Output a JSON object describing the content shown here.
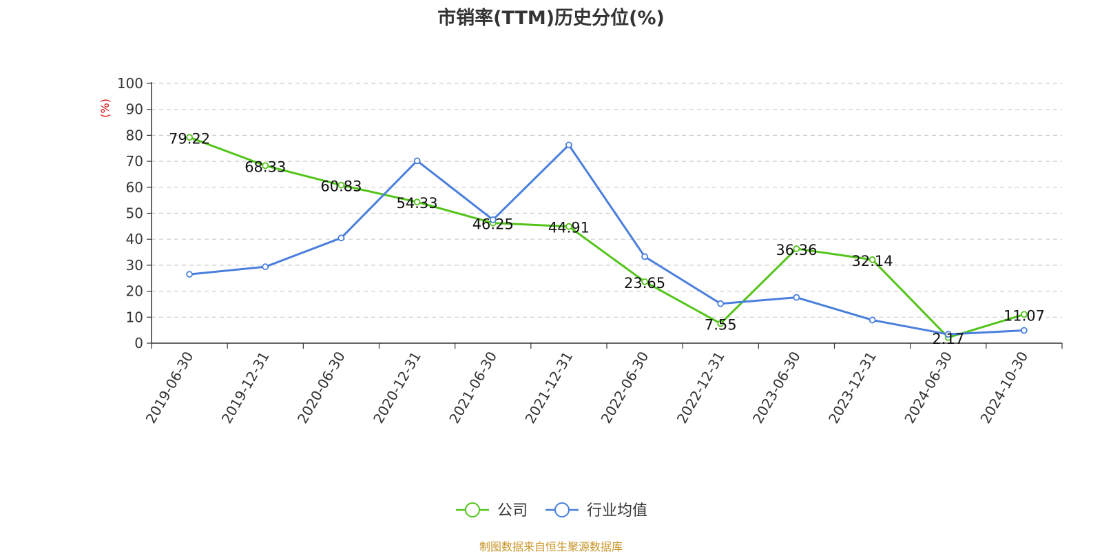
{
  "title": "市销率(TTM)历史分位(%)",
  "source": "制图数据来自恒生聚源数据库",
  "chart_data": {
    "type": "line",
    "title": "市销率(TTM)历史分位(%)",
    "xlabel": "",
    "ylabel": "(%)",
    "ylim": [
      0,
      100
    ],
    "yticks": [
      0,
      10,
      20,
      30,
      40,
      50,
      60,
      70,
      80,
      90,
      100
    ],
    "grid": true,
    "legend_position": "bottom",
    "categories": [
      "2019-06-30",
      "2019-12-31",
      "2020-06-30",
      "2020-12-31",
      "2021-06-30",
      "2021-12-31",
      "2022-06-30",
      "2022-12-31",
      "2023-06-30",
      "2023-12-31",
      "2024-06-30",
      "2024-10-30"
    ],
    "series": [
      {
        "name": "公司",
        "color": "#52c41a",
        "values": [
          79.22,
          68.33,
          60.83,
          54.33,
          46.25,
          44.91,
          23.65,
          7.55,
          36.36,
          32.14,
          2.17,
          11.07
        ],
        "labels": [
          "79.22",
          "68.33",
          "60.83",
          "54.33",
          "46.25",
          "44.91",
          "23.65",
          "7.55",
          "36.36",
          "32.14",
          "2.17",
          "11.07"
        ]
      },
      {
        "name": "行业均值",
        "color": "#4a7fdc",
        "values": [
          26.5,
          29.4,
          40.5,
          70.2,
          47.5,
          76.3,
          33.3,
          15.2,
          17.6,
          8.9,
          3.4,
          4.9
        ]
      }
    ]
  }
}
